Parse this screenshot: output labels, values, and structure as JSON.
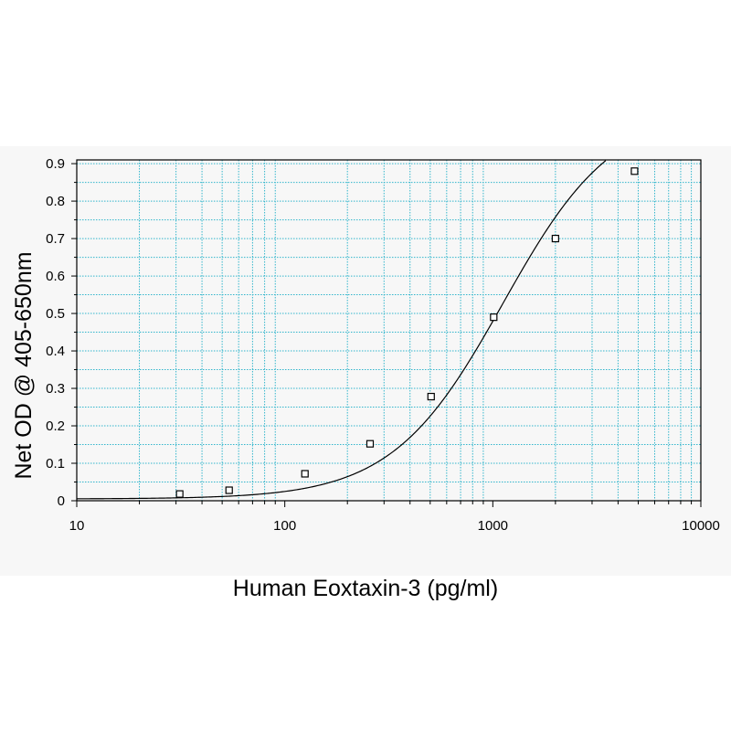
{
  "chart_data": {
    "type": "scatter",
    "title": "",
    "xlabel": "Human Eoxtaxin-3 (pg/ml)",
    "ylabel": "Net OD @ 405-650nm",
    "xscale": "log",
    "xlim": [
      10,
      10000
    ],
    "ylim": [
      0,
      0.91
    ],
    "grid": true,
    "xticks": [
      10,
      100,
      1000,
      10000
    ],
    "xtick_labels": [
      "10",
      "100",
      "1000",
      "10000"
    ],
    "yticks": [
      0,
      0.1,
      0.2,
      0.3,
      0.4,
      0.5,
      0.6,
      0.7,
      0.8,
      0.9
    ],
    "ytick_labels": [
      "0",
      "0.1",
      "0.2",
      "0.3",
      "0.4",
      "0.5",
      "0.6",
      "0.7",
      "0.8",
      "0.9"
    ],
    "points": [
      {
        "x": 31.25,
        "y": 0.018
      },
      {
        "x": 54,
        "y": 0.028
      },
      {
        "x": 125,
        "y": 0.072
      },
      {
        "x": 257,
        "y": 0.152
      },
      {
        "x": 505,
        "y": 0.278
      },
      {
        "x": 1010,
        "y": 0.49
      },
      {
        "x": 2000,
        "y": 0.7
      },
      {
        "x": 4800,
        "y": 0.88
      }
    ],
    "fit": {
      "model": "4PL",
      "a": 0.0048,
      "b": 1.63,
      "c": 1120,
      "d": 1.05
    },
    "colors": {
      "grid": "#33b6cc",
      "curve": "#000000",
      "marker": "#000000",
      "frame": "#000000"
    }
  }
}
